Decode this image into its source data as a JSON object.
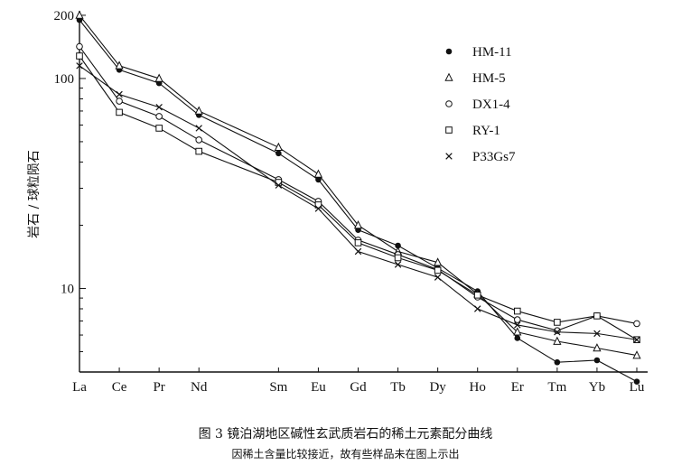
{
  "chart_data": {
    "type": "line",
    "title": "",
    "xlabel": "",
    "ylabel": "岩石 / 球粒陨石",
    "y_scale": "log",
    "ylim": [
      4,
      210
    ],
    "yticks": [
      10,
      100,
      200
    ],
    "grid": false,
    "legend_position": "top-right",
    "categories": [
      "La",
      "Ce",
      "Pr",
      "Nd",
      "Sm",
      "Eu",
      "Gd",
      "Tb",
      "Dy",
      "Ho",
      "Er",
      "Tm",
      "Yb",
      "Lu"
    ],
    "x_positions": [
      0,
      1,
      2,
      3,
      5,
      6,
      7,
      8,
      9,
      10,
      11,
      12,
      13,
      14
    ],
    "series": [
      {
        "name": "HM-11",
        "marker": "filled-circle",
        "values": [
          190,
          110,
          95,
          67,
          44,
          33,
          19,
          16,
          12.5,
          9.7,
          5.8,
          4.45,
          4.55,
          3.6
        ]
      },
      {
        "name": "HM-5",
        "marker": "triangle",
        "values": [
          200,
          115,
          100,
          70,
          47,
          35,
          20,
          15,
          13.3,
          9.4,
          6.2,
          5.6,
          5.2,
          4.8
        ]
      },
      {
        "name": "DX1-4",
        "marker": "open-circle",
        "values": [
          142,
          78,
          66,
          51,
          33,
          26,
          17,
          14.5,
          12.3,
          9.1,
          7.1,
          6.3,
          7.4,
          6.8
        ]
      },
      {
        "name": "RY-1",
        "marker": "square",
        "values": [
          128,
          69,
          58,
          45,
          32,
          25,
          16.5,
          14,
          12.2,
          9.3,
          7.8,
          6.9,
          7.4,
          5.7
        ]
      },
      {
        "name": "P33Gs7",
        "marker": "x",
        "values": [
          115,
          84,
          73,
          58,
          31,
          24,
          15,
          13,
          11.3,
          8,
          6.7,
          6.2,
          6.1,
          5.7
        ]
      }
    ]
  },
  "caption": {
    "title": "图 3   镜泊湖地区碱性玄武质岩石的稀土元素配分曲线",
    "note": "因稀土含量比较接近，故有些样品未在图上示出"
  }
}
